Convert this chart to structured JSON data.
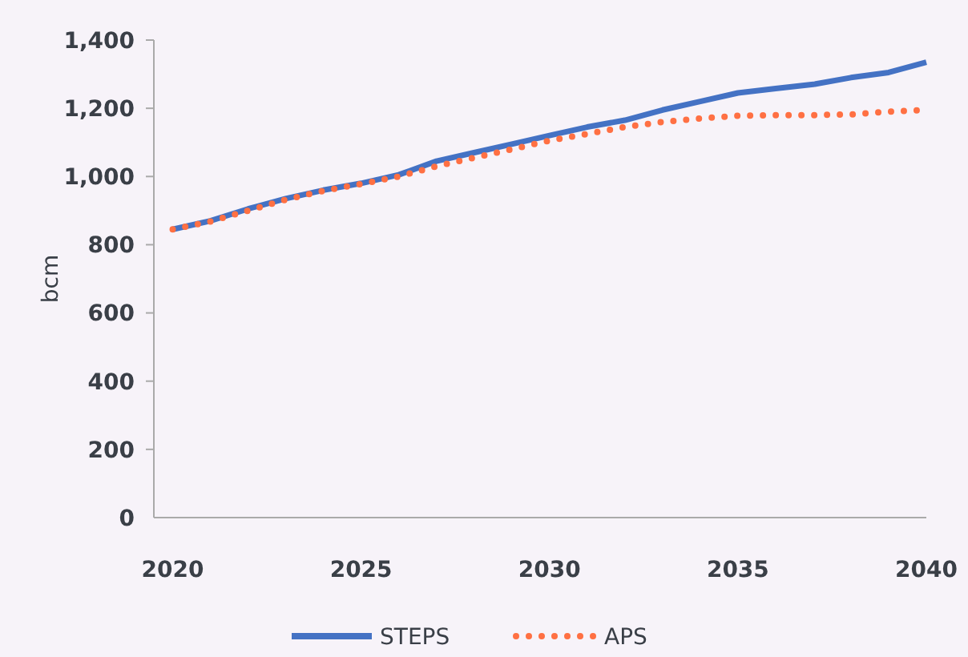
{
  "chart_data": {
    "type": "line",
    "ylabel": "bcm",
    "x": [
      2020,
      2021,
      2022,
      2023,
      2024,
      2025,
      2026,
      2027,
      2028,
      2029,
      2030,
      2031,
      2032,
      2033,
      2034,
      2035,
      2036,
      2037,
      2038,
      2039,
      2040
    ],
    "series": [
      {
        "name": "STEPS",
        "color": "#4472c4",
        "line_style": "solid",
        "values": [
          845,
          870,
          905,
          935,
          960,
          980,
          1005,
          1045,
          1070,
          1095,
          1120,
          1145,
          1165,
          1195,
          1220,
          1245,
          1258,
          1270,
          1290,
          1305,
          1335
        ]
      },
      {
        "name": "APS",
        "color": "#ff7043",
        "line_style": "dotted",
        "values": [
          845,
          868,
          900,
          932,
          958,
          978,
          1000,
          1030,
          1055,
          1080,
          1105,
          1125,
          1145,
          1160,
          1170,
          1178,
          1180,
          1180,
          1182,
          1190,
          1195
        ]
      }
    ],
    "xlim": [
      2019.5,
      2040
    ],
    "xticks": [
      2020,
      2025,
      2030,
      2035,
      2040
    ],
    "ylim": [
      0,
      1400
    ],
    "yticks": [
      {
        "value": 0,
        "label": "0"
      },
      {
        "value": 200,
        "label": "200"
      },
      {
        "value": 400,
        "label": "400"
      },
      {
        "value": 600,
        "label": "600"
      },
      {
        "value": 800,
        "label": "800"
      },
      {
        "value": 1000,
        "label": "1,000"
      },
      {
        "value": 1200,
        "label": "1,200"
      },
      {
        "value": 1400,
        "label": "1,400"
      }
    ],
    "grid": false,
    "legend": "bottom",
    "marker": "none"
  }
}
